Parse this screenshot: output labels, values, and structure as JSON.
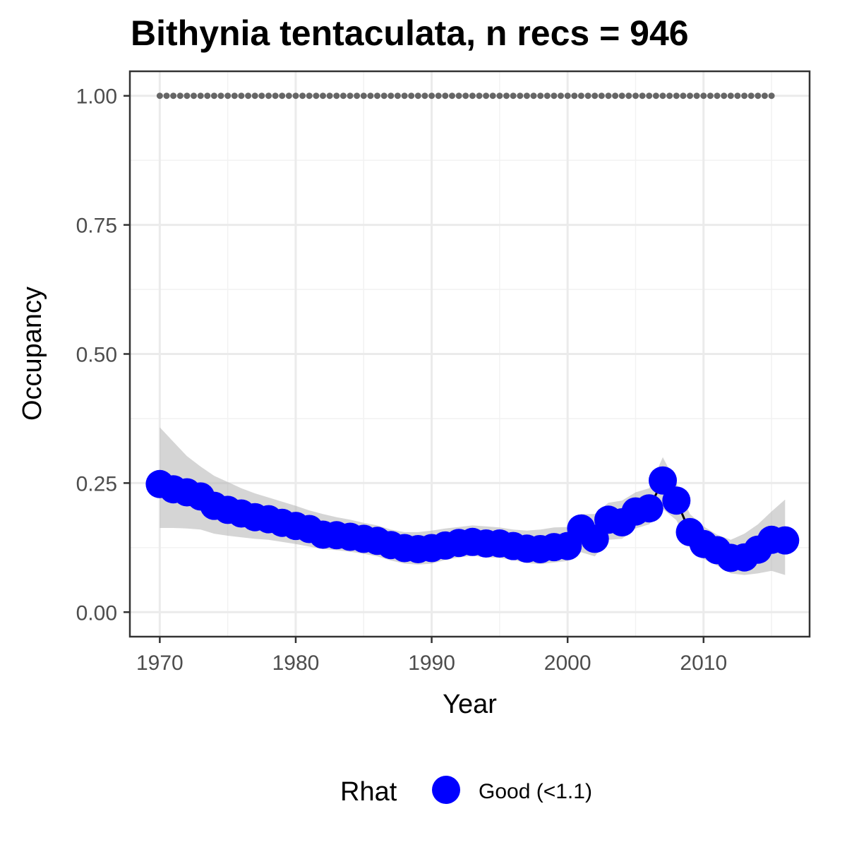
{
  "chart_data": {
    "type": "line",
    "title": "Bithynia tentaculata, n recs = 946",
    "xlabel": "Year",
    "ylabel": "Occupancy",
    "xlim": [
      1967.8,
      2017.8
    ],
    "ylim": [
      -0.0475,
      1.0475
    ],
    "x_ticks": [
      1970,
      1980,
      1990,
      2000,
      2010
    ],
    "x_tick_labels": [
      "1970",
      "1980",
      "1990",
      "2000",
      "2010"
    ],
    "y_ticks": [
      0,
      0.25,
      0.5,
      0.75,
      1.0
    ],
    "y_tick_labels": [
      "0.00",
      "0.25",
      "0.50",
      "0.75",
      "1.00"
    ],
    "grid": true,
    "legend": {
      "position": "bottom",
      "title": "Rhat",
      "items": [
        {
          "label": "Good (<1.1)",
          "color": "#0000ff"
        }
      ]
    },
    "colors": {
      "points": "#0000ff",
      "line": "#000000",
      "ribbon": "#b3b3b3",
      "reference_points": "#666666"
    },
    "x": [
      1970,
      1971,
      1972,
      1973,
      1974,
      1975,
      1976,
      1977,
      1978,
      1979,
      1980,
      1981,
      1982,
      1983,
      1984,
      1985,
      1986,
      1987,
      1988,
      1989,
      1990,
      1991,
      1992,
      1993,
      1994,
      1995,
      1996,
      1997,
      1998,
      1999,
      2000,
      2001,
      2002,
      2003,
      2004,
      2005,
      2006,
      2007,
      2008,
      2009,
      2010,
      2011,
      2012,
      2013,
      2014,
      2015,
      2016
    ],
    "series": [
      {
        "name": "Good (<1.1)",
        "values": [
          0.248,
          0.238,
          0.232,
          0.224,
          0.206,
          0.198,
          0.191,
          0.184,
          0.18,
          0.173,
          0.167,
          0.161,
          0.15,
          0.149,
          0.146,
          0.142,
          0.138,
          0.13,
          0.124,
          0.122,
          0.124,
          0.129,
          0.134,
          0.136,
          0.133,
          0.133,
          0.128,
          0.123,
          0.122,
          0.126,
          0.128,
          0.162,
          0.142,
          0.179,
          0.174,
          0.195,
          0.201,
          0.255,
          0.216,
          0.155,
          0.132,
          0.12,
          0.105,
          0.106,
          0.121,
          0.14,
          0.139
        ],
        "lower": [
          0.163,
          0.163,
          0.162,
          0.16,
          0.152,
          0.148,
          0.145,
          0.142,
          0.14,
          0.136,
          0.132,
          0.127,
          0.122,
          0.12,
          0.117,
          0.113,
          0.108,
          0.1,
          0.094,
          0.092,
          0.094,
          0.101,
          0.106,
          0.109,
          0.106,
          0.105,
          0.101,
          0.095,
          0.093,
          0.096,
          0.099,
          0.116,
          0.108,
          0.14,
          0.142,
          0.162,
          0.17,
          0.2,
          0.178,
          0.124,
          0.103,
          0.09,
          0.075,
          0.072,
          0.075,
          0.08,
          0.072
        ],
        "upper": [
          0.358,
          0.33,
          0.302,
          0.282,
          0.264,
          0.252,
          0.24,
          0.23,
          0.222,
          0.214,
          0.206,
          0.197,
          0.19,
          0.184,
          0.179,
          0.173,
          0.168,
          0.16,
          0.155,
          0.155,
          0.158,
          0.162,
          0.165,
          0.168,
          0.166,
          0.164,
          0.16,
          0.158,
          0.16,
          0.164,
          0.165,
          0.19,
          0.19,
          0.212,
          0.216,
          0.232,
          0.24,
          0.3,
          0.25,
          0.19,
          0.166,
          0.15,
          0.14,
          0.152,
          0.17,
          0.195,
          0.218
        ]
      }
    ],
    "reference_points": {
      "y": 1.0,
      "x_values": [
        1970,
        1970.5,
        1971,
        1971.5,
        1972,
        1972.5,
        1973,
        1973.5,
        1974,
        1974.5,
        1975,
        1975.5,
        1976,
        1976.5,
        1977,
        1977.5,
        1978,
        1978.5,
        1979,
        1979.5,
        1980,
        1980.5,
        1981,
        1981.5,
        1982,
        1982.5,
        1983,
        1983.5,
        1984,
        1984.5,
        1985,
        1985.5,
        1986,
        1986.5,
        1987,
        1987.5,
        1988,
        1988.5,
        1989,
        1989.5,
        1990,
        1990.5,
        1991,
        1991.5,
        1992,
        1992.5,
        1993,
        1993.5,
        1994,
        1994.5,
        1995,
        1995.5,
        1996,
        1996.5,
        1997,
        1997.5,
        1998,
        1998.5,
        1999,
        1999.5,
        2000,
        2000.5,
        2001,
        2001.5,
        2002,
        2002.5,
        2003,
        2003.5,
        2004,
        2004.5,
        2005,
        2005.5,
        2006,
        2006.5,
        2007,
        2007.5,
        2008,
        2008.5,
        2009,
        2009.5,
        2010,
        2010.5,
        2011,
        2011.5,
        2012,
        2012.5,
        2013,
        2013.5,
        2014,
        2014.5,
        2015
      ]
    }
  }
}
